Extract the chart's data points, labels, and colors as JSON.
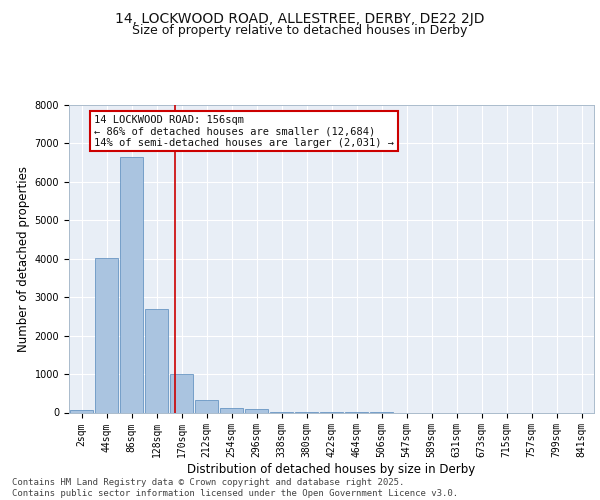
{
  "title_line1": "14, LOCKWOOD ROAD, ALLESTREE, DERBY, DE22 2JD",
  "title_line2": "Size of property relative to detached houses in Derby",
  "xlabel": "Distribution of detached houses by size in Derby",
  "ylabel": "Number of detached properties",
  "categories": [
    "2sqm",
    "44sqm",
    "86sqm",
    "128sqm",
    "170sqm",
    "212sqm",
    "254sqm",
    "296sqm",
    "338sqm",
    "380sqm",
    "422sqm",
    "464sqm",
    "506sqm",
    "547sqm",
    "589sqm",
    "631sqm",
    "673sqm",
    "715sqm",
    "757sqm",
    "799sqm",
    "841sqm"
  ],
  "values": [
    60,
    4020,
    6650,
    2680,
    1000,
    320,
    130,
    80,
    20,
    5,
    3,
    2,
    1,
    0,
    0,
    0,
    0,
    0,
    0,
    0,
    0
  ],
  "bar_color": "#aac4e0",
  "bar_edge_color": "#5588bb",
  "background_color": "#e8eef6",
  "grid_color": "#ffffff",
  "vline_x": 3.72,
  "vline_color": "#cc0000",
  "annotation_text": "14 LOCKWOOD ROAD: 156sqm\n← 86% of detached houses are smaller (12,684)\n14% of semi-detached houses are larger (2,031) →",
  "annotation_box_color": "#cc0000",
  "ylim": [
    0,
    8000
  ],
  "yticks": [
    0,
    1000,
    2000,
    3000,
    4000,
    5000,
    6000,
    7000,
    8000
  ],
  "footer_text": "Contains HM Land Registry data © Crown copyright and database right 2025.\nContains public sector information licensed under the Open Government Licence v3.0.",
  "title_fontsize": 10,
  "subtitle_fontsize": 9,
  "axis_label_fontsize": 8.5,
  "tick_fontsize": 7,
  "ann_fontsize": 7.5,
  "footer_fontsize": 6.5
}
